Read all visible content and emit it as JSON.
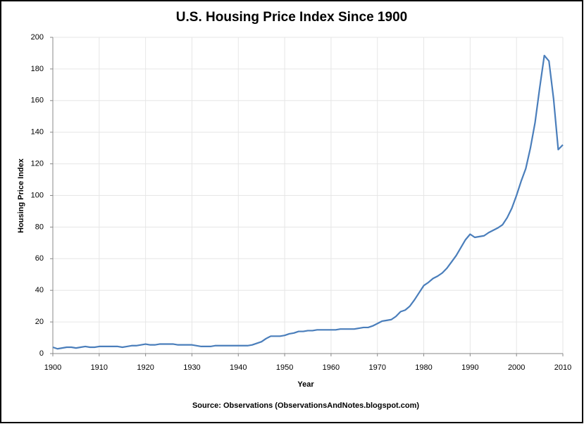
{
  "chart_data": {
    "type": "line",
    "title": "U.S. Housing Price Index Since 1900",
    "x_label": "Year",
    "y_label": "Housing Price Index",
    "source": "Source: Observations  (ObservationsAndNotes.blogspot.com)",
    "x": [
      1900,
      1901,
      1902,
      1903,
      1904,
      1905,
      1906,
      1907,
      1908,
      1909,
      1910,
      1911,
      1912,
      1913,
      1914,
      1915,
      1916,
      1917,
      1918,
      1919,
      1920,
      1921,
      1922,
      1923,
      1924,
      1925,
      1926,
      1927,
      1928,
      1929,
      1930,
      1931,
      1932,
      1933,
      1934,
      1935,
      1936,
      1937,
      1938,
      1939,
      1940,
      1941,
      1942,
      1943,
      1944,
      1945,
      1946,
      1947,
      1948,
      1949,
      1950,
      1951,
      1952,
      1953,
      1954,
      1955,
      1956,
      1957,
      1958,
      1959,
      1960,
      1961,
      1962,
      1963,
      1964,
      1965,
      1966,
      1967,
      1968,
      1969,
      1970,
      1971,
      1972,
      1973,
      1974,
      1975,
      1976,
      1977,
      1978,
      1979,
      1980,
      1981,
      1982,
      1983,
      1984,
      1985,
      1986,
      1987,
      1988,
      1989,
      1990,
      1991,
      1992,
      1993,
      1994,
      1995,
      1996,
      1997,
      1998,
      1999,
      2000,
      2001,
      2002,
      2003,
      2004,
      2005,
      2006,
      2007,
      2008,
      2009,
      2010
    ],
    "series": [
      {
        "name": "Housing Price Index",
        "color": "#4a7ebb",
        "values": [
          4,
          3,
          3.5,
          4,
          4,
          3.5,
          4,
          4.5,
          4,
          4,
          4.5,
          4.5,
          4.5,
          4.5,
          4.5,
          4,
          4.5,
          5,
          5,
          5.5,
          6,
          5.5,
          5.5,
          6,
          6,
          6,
          6,
          5.5,
          5.5,
          5.5,
          5.5,
          5,
          4.5,
          4.5,
          4.5,
          5,
          5,
          5,
          5,
          5,
          5,
          5,
          5,
          5.5,
          6.5,
          7.5,
          9.5,
          11,
          11,
          11,
          11.5,
          12.5,
          13,
          14,
          14,
          14.5,
          14.5,
          15,
          15,
          15,
          15,
          15,
          15.5,
          15.5,
          15.5,
          15.5,
          16,
          16.5,
          16.5,
          17.5,
          19,
          20.5,
          21,
          21.5,
          23.5,
          26.5,
          27.5,
          30,
          34,
          38.5,
          43,
          45,
          47.5,
          49,
          51,
          54,
          58,
          62,
          67,
          72,
          75.5,
          73.5,
          74,
          74.5,
          76.5,
          78,
          79.5,
          81.5,
          86,
          92,
          100,
          109,
          117,
          130,
          146,
          168,
          188.5,
          185,
          161,
          129,
          132
        ]
      }
    ],
    "xlim": [
      1900,
      2010
    ],
    "xticks": [
      1900,
      1910,
      1920,
      1930,
      1940,
      1950,
      1960,
      1970,
      1980,
      1990,
      2000,
      2010
    ],
    "ylim": [
      0,
      200
    ],
    "yticks": [
      0,
      20,
      40,
      60,
      80,
      100,
      120,
      140,
      160,
      180,
      200
    ],
    "grid": true
  }
}
